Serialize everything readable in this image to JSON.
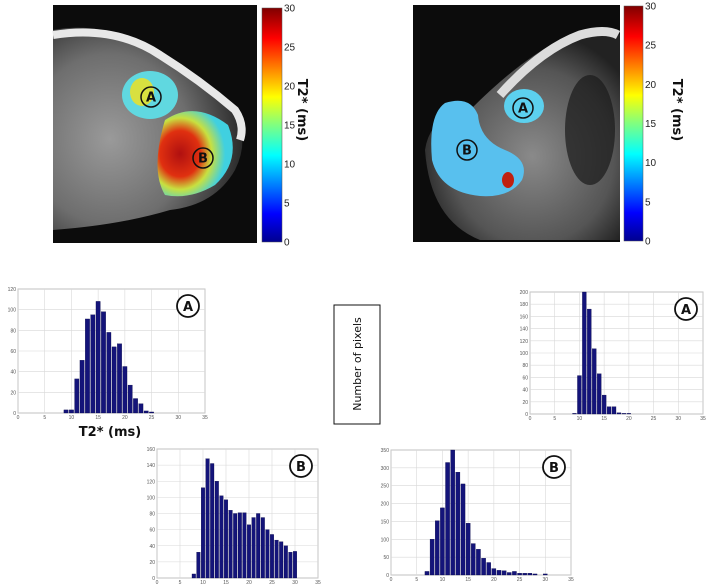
{
  "colors": {
    "bar": "#14147a",
    "grid": "#d8d8d8"
  },
  "images": [
    {
      "colorbar_label": "T2* (ms)",
      "colorbar_ticks": [
        "0",
        "5",
        "10",
        "15",
        "20",
        "25",
        "30"
      ],
      "region_labels": [
        "A",
        "B"
      ]
    },
    {
      "colorbar_label": "T2* (ms)",
      "colorbar_ticks": [
        "0",
        "5",
        "10",
        "15",
        "20",
        "25",
        "30"
      ],
      "region_labels": [
        "A",
        "B"
      ]
    }
  ],
  "shared_ylabel": "Number of pixels",
  "chart_data": [
    {
      "type": "bar",
      "id": "left-A",
      "badge": "A",
      "xlabel": "T2* (ms)",
      "xlim": [
        0,
        35
      ],
      "ylim": [
        0,
        120
      ],
      "xticks": [
        0,
        5,
        10,
        15,
        20,
        25,
        30,
        35
      ],
      "yticks": [
        0,
        20,
        40,
        60,
        80,
        100,
        120
      ],
      "grid": true,
      "x": [
        9,
        10,
        11,
        12,
        13,
        14,
        15,
        16,
        17,
        18,
        19,
        20,
        21,
        22,
        23,
        24,
        25
      ],
      "values": [
        3,
        3,
        33,
        51,
        91,
        95,
        108,
        98,
        78,
        64,
        67,
        45,
        27,
        14,
        9,
        2,
        1
      ]
    },
    {
      "type": "bar",
      "id": "right-A",
      "badge": "A",
      "xlabel": "",
      "xlim": [
        0,
        35
      ],
      "ylim": [
        0,
        200
      ],
      "xticks": [
        0,
        5,
        10,
        15,
        20,
        25,
        30,
        35
      ],
      "yticks": [
        0,
        20,
        40,
        60,
        80,
        100,
        120,
        140,
        160,
        180,
        200
      ],
      "grid": true,
      "x": [
        9,
        10,
        11,
        12,
        13,
        14,
        15,
        16,
        17,
        18,
        19,
        20
      ],
      "values": [
        1,
        63,
        200,
        172,
        107,
        66,
        31,
        12,
        12,
        2,
        1,
        1
      ]
    },
    {
      "type": "bar",
      "id": "left-B",
      "badge": "B",
      "xlabel": "",
      "xlim": [
        0,
        35
      ],
      "ylim": [
        0,
        160
      ],
      "xticks": [
        0,
        5,
        10,
        15,
        20,
        25,
        30,
        35
      ],
      "yticks": [
        0,
        20,
        40,
        60,
        80,
        100,
        120,
        140,
        160
      ],
      "grid": true,
      "x": [
        8,
        9,
        10,
        11,
        12,
        13,
        14,
        15,
        16,
        17,
        18,
        19,
        20,
        21,
        22,
        23,
        24,
        25,
        26,
        27,
        28,
        29,
        30
      ],
      "values": [
        5,
        32,
        112,
        148,
        142,
        120,
        102,
        97,
        84,
        80,
        81,
        81,
        66,
        75,
        80,
        75,
        60,
        54,
        47,
        45,
        40,
        32,
        33
      ]
    },
    {
      "type": "bar",
      "id": "right-B",
      "badge": "B",
      "xlabel": "",
      "xlim": [
        0,
        35
      ],
      "ylim": [
        0,
        350
      ],
      "xticks": [
        0,
        5,
        10,
        15,
        20,
        25,
        30,
        35
      ],
      "yticks": [
        0,
        50,
        100,
        150,
        200,
        250,
        300,
        350
      ],
      "grid": true,
      "x": [
        7,
        8,
        9,
        10,
        11,
        12,
        13,
        14,
        15,
        16,
        17,
        18,
        19,
        20,
        21,
        22,
        23,
        24,
        25,
        26,
        27,
        28,
        30
      ],
      "values": [
        10,
        100,
        152,
        188,
        315,
        350,
        288,
        255,
        145,
        88,
        72,
        47,
        35,
        18,
        13,
        12,
        7,
        10,
        5,
        5,
        5,
        3,
        3
      ]
    }
  ]
}
